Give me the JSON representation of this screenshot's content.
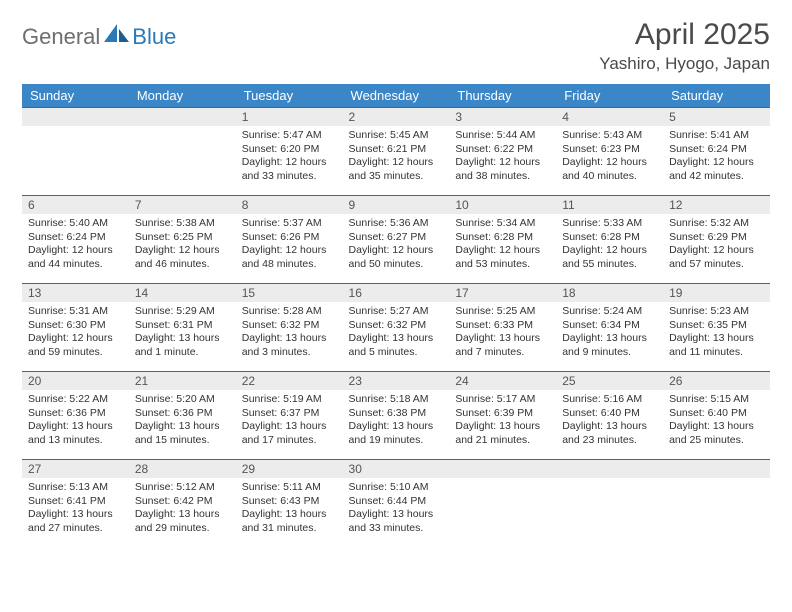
{
  "brand": {
    "part1": "General",
    "part2": "Blue"
  },
  "title": "April 2025",
  "location": "Yashiro, Hyogo, Japan",
  "colors": {
    "header_bg": "#3b86c6",
    "header_text": "#ffffff",
    "daynum_bg": "#ececec",
    "cell_border": "#2f6aa0",
    "brand_gray": "#6e6e6e",
    "brand_blue": "#2a7ab9",
    "text": "#333333"
  },
  "typography": {
    "title_size": 30,
    "location_size": 17,
    "dayhead_size": 13,
    "daynum_size": 12,
    "cell_size": 10.5,
    "font": "Arial"
  },
  "weekdays": [
    "Sunday",
    "Monday",
    "Tuesday",
    "Wednesday",
    "Thursday",
    "Friday",
    "Saturday"
  ],
  "weeks": [
    [
      {
        "day": ""
      },
      {
        "day": ""
      },
      {
        "day": "1",
        "sunrise": "Sunrise: 5:47 AM",
        "sunset": "Sunset: 6:20 PM",
        "daylight": "Daylight: 12 hours and 33 minutes."
      },
      {
        "day": "2",
        "sunrise": "Sunrise: 5:45 AM",
        "sunset": "Sunset: 6:21 PM",
        "daylight": "Daylight: 12 hours and 35 minutes."
      },
      {
        "day": "3",
        "sunrise": "Sunrise: 5:44 AM",
        "sunset": "Sunset: 6:22 PM",
        "daylight": "Daylight: 12 hours and 38 minutes."
      },
      {
        "day": "4",
        "sunrise": "Sunrise: 5:43 AM",
        "sunset": "Sunset: 6:23 PM",
        "daylight": "Daylight: 12 hours and 40 minutes."
      },
      {
        "day": "5",
        "sunrise": "Sunrise: 5:41 AM",
        "sunset": "Sunset: 6:24 PM",
        "daylight": "Daylight: 12 hours and 42 minutes."
      }
    ],
    [
      {
        "day": "6",
        "sunrise": "Sunrise: 5:40 AM",
        "sunset": "Sunset: 6:24 PM",
        "daylight": "Daylight: 12 hours and 44 minutes."
      },
      {
        "day": "7",
        "sunrise": "Sunrise: 5:38 AM",
        "sunset": "Sunset: 6:25 PM",
        "daylight": "Daylight: 12 hours and 46 minutes."
      },
      {
        "day": "8",
        "sunrise": "Sunrise: 5:37 AM",
        "sunset": "Sunset: 6:26 PM",
        "daylight": "Daylight: 12 hours and 48 minutes."
      },
      {
        "day": "9",
        "sunrise": "Sunrise: 5:36 AM",
        "sunset": "Sunset: 6:27 PM",
        "daylight": "Daylight: 12 hours and 50 minutes."
      },
      {
        "day": "10",
        "sunrise": "Sunrise: 5:34 AM",
        "sunset": "Sunset: 6:28 PM",
        "daylight": "Daylight: 12 hours and 53 minutes."
      },
      {
        "day": "11",
        "sunrise": "Sunrise: 5:33 AM",
        "sunset": "Sunset: 6:28 PM",
        "daylight": "Daylight: 12 hours and 55 minutes."
      },
      {
        "day": "12",
        "sunrise": "Sunrise: 5:32 AM",
        "sunset": "Sunset: 6:29 PM",
        "daylight": "Daylight: 12 hours and 57 minutes."
      }
    ],
    [
      {
        "day": "13",
        "sunrise": "Sunrise: 5:31 AM",
        "sunset": "Sunset: 6:30 PM",
        "daylight": "Daylight: 12 hours and 59 minutes."
      },
      {
        "day": "14",
        "sunrise": "Sunrise: 5:29 AM",
        "sunset": "Sunset: 6:31 PM",
        "daylight": "Daylight: 13 hours and 1 minute."
      },
      {
        "day": "15",
        "sunrise": "Sunrise: 5:28 AM",
        "sunset": "Sunset: 6:32 PM",
        "daylight": "Daylight: 13 hours and 3 minutes."
      },
      {
        "day": "16",
        "sunrise": "Sunrise: 5:27 AM",
        "sunset": "Sunset: 6:32 PM",
        "daylight": "Daylight: 13 hours and 5 minutes."
      },
      {
        "day": "17",
        "sunrise": "Sunrise: 5:25 AM",
        "sunset": "Sunset: 6:33 PM",
        "daylight": "Daylight: 13 hours and 7 minutes."
      },
      {
        "day": "18",
        "sunrise": "Sunrise: 5:24 AM",
        "sunset": "Sunset: 6:34 PM",
        "daylight": "Daylight: 13 hours and 9 minutes."
      },
      {
        "day": "19",
        "sunrise": "Sunrise: 5:23 AM",
        "sunset": "Sunset: 6:35 PM",
        "daylight": "Daylight: 13 hours and 11 minutes."
      }
    ],
    [
      {
        "day": "20",
        "sunrise": "Sunrise: 5:22 AM",
        "sunset": "Sunset: 6:36 PM",
        "daylight": "Daylight: 13 hours and 13 minutes."
      },
      {
        "day": "21",
        "sunrise": "Sunrise: 5:20 AM",
        "sunset": "Sunset: 6:36 PM",
        "daylight": "Daylight: 13 hours and 15 minutes."
      },
      {
        "day": "22",
        "sunrise": "Sunrise: 5:19 AM",
        "sunset": "Sunset: 6:37 PM",
        "daylight": "Daylight: 13 hours and 17 minutes."
      },
      {
        "day": "23",
        "sunrise": "Sunrise: 5:18 AM",
        "sunset": "Sunset: 6:38 PM",
        "daylight": "Daylight: 13 hours and 19 minutes."
      },
      {
        "day": "24",
        "sunrise": "Sunrise: 5:17 AM",
        "sunset": "Sunset: 6:39 PM",
        "daylight": "Daylight: 13 hours and 21 minutes."
      },
      {
        "day": "25",
        "sunrise": "Sunrise: 5:16 AM",
        "sunset": "Sunset: 6:40 PM",
        "daylight": "Daylight: 13 hours and 23 minutes."
      },
      {
        "day": "26",
        "sunrise": "Sunrise: 5:15 AM",
        "sunset": "Sunset: 6:40 PM",
        "daylight": "Daylight: 13 hours and 25 minutes."
      }
    ],
    [
      {
        "day": "27",
        "sunrise": "Sunrise: 5:13 AM",
        "sunset": "Sunset: 6:41 PM",
        "daylight": "Daylight: 13 hours and 27 minutes."
      },
      {
        "day": "28",
        "sunrise": "Sunrise: 5:12 AM",
        "sunset": "Sunset: 6:42 PM",
        "daylight": "Daylight: 13 hours and 29 minutes."
      },
      {
        "day": "29",
        "sunrise": "Sunrise: 5:11 AM",
        "sunset": "Sunset: 6:43 PM",
        "daylight": "Daylight: 13 hours and 31 minutes."
      },
      {
        "day": "30",
        "sunrise": "Sunrise: 5:10 AM",
        "sunset": "Sunset: 6:44 PM",
        "daylight": "Daylight: 13 hours and 33 minutes."
      },
      {
        "day": ""
      },
      {
        "day": ""
      },
      {
        "day": ""
      }
    ]
  ]
}
